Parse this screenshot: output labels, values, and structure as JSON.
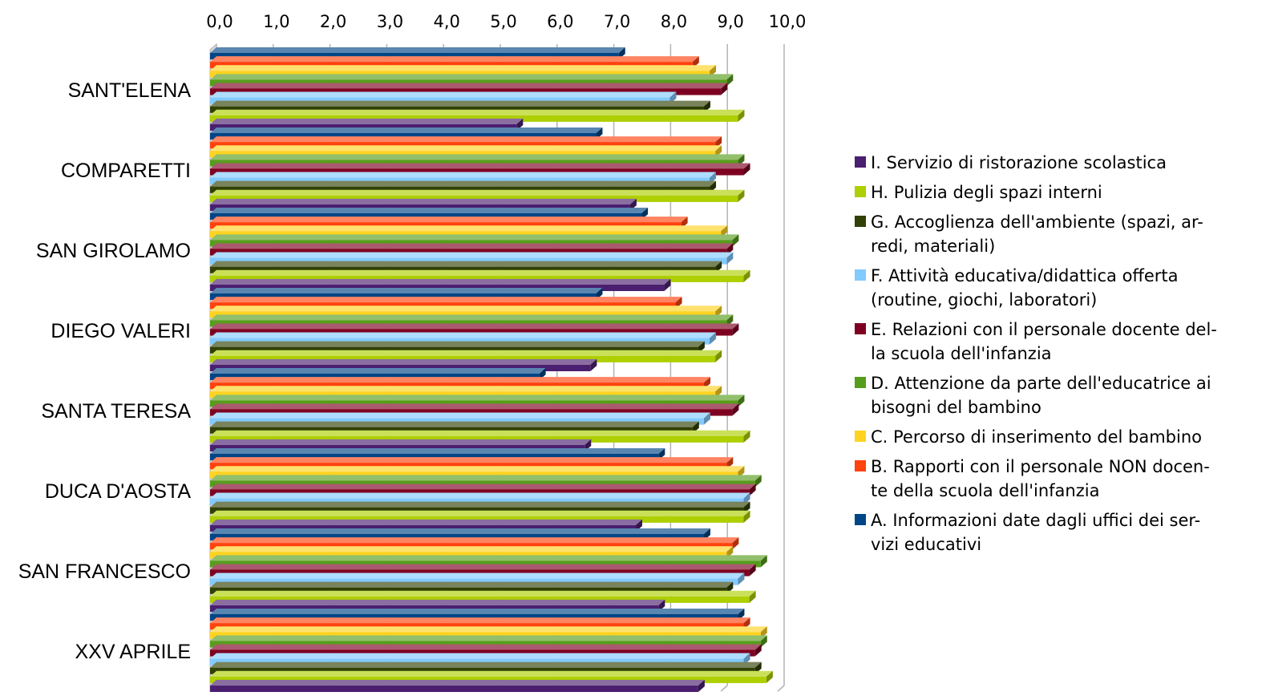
{
  "chart_data": {
    "type": "bar",
    "orientation": "horizontal",
    "style": "3d",
    "xlim": [
      0,
      10
    ],
    "x_ticks": [
      "0,0",
      "1,0",
      "2,0",
      "3,0",
      "4,0",
      "5,0",
      "6,0",
      "7,0",
      "8,0",
      "9,0",
      "10,0"
    ],
    "grid": true,
    "legend_position": "right",
    "categories": [
      "SANT'ELENA",
      "COMPARETTI",
      "SAN GIROLAMO",
      "DIEGO VALERI",
      "SANTA TERESA",
      "DUCA D'AOSTA",
      "SAN FRANCESCO",
      "XXV APRILE"
    ],
    "series": [
      {
        "name": "A. Informazioni date dagli uffici dei servizi educativi",
        "color": "#004586",
        "values": [
          7.2,
          6.8,
          7.6,
          6.8,
          5.8,
          7.9,
          8.7,
          9.3
        ]
      },
      {
        "name": "B. Rapporti con il personale NON docente della scuola dell'infanzia",
        "color": "#ff420e",
        "values": [
          8.5,
          8.9,
          8.3,
          8.2,
          8.7,
          9.1,
          9.2,
          9.4
        ]
      },
      {
        "name": "C. Percorso di inserimento del bambino",
        "color": "#ffd320",
        "values": [
          8.8,
          8.9,
          9.0,
          8.9,
          8.9,
          9.3,
          9.1,
          9.7
        ]
      },
      {
        "name": "D. Attenzione da parte dell'educatrice ai bisogni del bambino",
        "color": "#579d1c",
        "values": [
          9.1,
          9.3,
          9.2,
          9.1,
          9.3,
          9.6,
          9.7,
          9.7
        ]
      },
      {
        "name": "E. Relazioni con il personale docente della scuola dell'infanzia",
        "color": "#7e0021",
        "values": [
          9.0,
          9.4,
          9.1,
          9.2,
          9.2,
          9.5,
          9.5,
          9.6
        ]
      },
      {
        "name": "F. Attività educativa/didattica offerta (routine, giochi, laboratori)",
        "color": "#83caff",
        "values": [
          8.1,
          8.8,
          9.1,
          8.8,
          8.7,
          9.4,
          9.3,
          9.4
        ]
      },
      {
        "name": "G. Accoglienza dell'ambiente (spazi, arredi, materiali)",
        "color": "#314004",
        "values": [
          8.7,
          8.8,
          8.9,
          8.6,
          8.5,
          9.4,
          9.1,
          9.6
        ]
      },
      {
        "name": "H. Pulizia degli spazi interni",
        "color": "#aecf00",
        "values": [
          9.3,
          9.3,
          9.4,
          8.9,
          9.4,
          9.4,
          9.5,
          9.8
        ]
      },
      {
        "name": "I. Servizio di ristorazione scolastica",
        "color": "#4b1f6f",
        "values": [
          5.4,
          7.4,
          8.0,
          6.7,
          6.6,
          7.5,
          7.9,
          8.6
        ]
      }
    ]
  },
  "legend_lines": [
    {
      "series": 8,
      "lines": [
        "I. Servizio di ristorazione scolastica"
      ]
    },
    {
      "series": 7,
      "lines": [
        "H. Pulizia degli spazi interni"
      ]
    },
    {
      "series": 6,
      "lines": [
        "G. Accoglienza dell'ambiente (spazi, ar-",
        "redi, materiali)"
      ]
    },
    {
      "series": 5,
      "lines": [
        "F. Attività educativa/didattica offerta",
        "(routine, giochi, laboratori)"
      ]
    },
    {
      "series": 4,
      "lines": [
        "E. Relazioni con il personale docente del-",
        "la scuola dell'infanzia"
      ]
    },
    {
      "series": 3,
      "lines": [
        "D. Attenzione da parte dell'educatrice ai",
        "bisogni del bambino"
      ]
    },
    {
      "series": 2,
      "lines": [
        "C. Percorso di inserimento del bambino"
      ]
    },
    {
      "series": 1,
      "lines": [
        "B. Rapporti con il personale NON docen-",
        "te della scuola dell'infanzia"
      ]
    },
    {
      "series": 0,
      "lines": [
        "A. Informazioni date dagli uffici dei ser-",
        "vizi educativi"
      ]
    }
  ]
}
